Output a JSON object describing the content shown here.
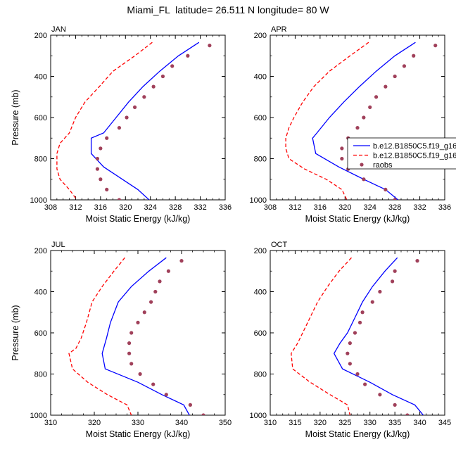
{
  "title": "Miami_FL  latitude= 26.511 N longitude= 80 W",
  "legend_entries": [
    "b.e12.B1850C5.f19_g16",
    "b.e12.B1850C5.f19_g16",
    "raobs"
  ],
  "colors": {
    "series1": "#0000ff",
    "series2": "#ff0000",
    "raobs": "#a0405a"
  },
  "chart_data": [
    {
      "type": "line",
      "panel_label": "JAN",
      "xlabel": "Moist Static Energy (kJ/kg)",
      "ylabel": "Pressure (mb)",
      "xlim": [
        308,
        336
      ],
      "ylim": [
        1000,
        200
      ],
      "y_inverted": true,
      "xticks": [
        308,
        312,
        316,
        320,
        324,
        328,
        332,
        336
      ],
      "yticks": [
        200,
        400,
        600,
        800,
        1000
      ],
      "legend": false,
      "series": [
        {
          "style": "solid",
          "color": "#0000ff",
          "points": [
            [
              331.8,
              235
            ],
            [
              328.5,
              300
            ],
            [
              325.5,
              375
            ],
            [
              322.8,
              450
            ],
            [
              320.5,
              525
            ],
            [
              318.5,
              600
            ],
            [
              316.5,
              675
            ],
            [
              314.5,
              700
            ],
            [
              314.5,
              775
            ],
            [
              316.5,
              840
            ],
            [
              319.5,
              900
            ],
            [
              322.0,
              950
            ],
            [
              323.8,
              1000
            ]
          ]
        },
        {
          "style": "dashed",
          "color": "#ff0000",
          "points": [
            [
              324.3,
              235
            ],
            [
              321.5,
              300
            ],
            [
              318.0,
              375
            ],
            [
              315.8,
              450
            ],
            [
              313.5,
              525
            ],
            [
              312.0,
              600
            ],
            [
              311.0,
              675
            ],
            [
              309.5,
              725
            ],
            [
              309.0,
              775
            ],
            [
              309.0,
              850
            ],
            [
              309.5,
              900
            ],
            [
              311.0,
              950
            ],
            [
              312.2,
              1000
            ]
          ]
        },
        {
          "name": "raobs",
          "style": "marker",
          "color": "#a0405a",
          "points": [
            [
              333.5,
              250
            ],
            [
              330.0,
              300
            ],
            [
              327.5,
              350
            ],
            [
              326.0,
              400
            ],
            [
              324.5,
              450
            ],
            [
              323.0,
              500
            ],
            [
              321.5,
              550
            ],
            [
              320.2,
              600
            ],
            [
              319.0,
              650
            ],
            [
              317.0,
              700
            ],
            [
              316.0,
              750
            ],
            [
              315.5,
              800
            ],
            [
              315.5,
              850
            ],
            [
              316.0,
              900
            ],
            [
              317.0,
              950
            ],
            [
              319.0,
              1000
            ]
          ]
        }
      ]
    },
    {
      "type": "line",
      "panel_label": "APR",
      "xlabel": "Moist Static Energy (kJ/kg)",
      "ylabel": "",
      "xlim": [
        308,
        336
      ],
      "ylim": [
        1000,
        200
      ],
      "y_inverted": true,
      "xticks": [
        308,
        312,
        316,
        320,
        324,
        328,
        332,
        336
      ],
      "yticks": [
        200,
        400,
        600,
        800,
        1000
      ],
      "legend": true,
      "legend_placement": "right",
      "series": [
        {
          "name": "b.e12.B1850C5.f19_g16",
          "style": "solid",
          "color": "#0000ff",
          "points": [
            [
              331.3,
              235
            ],
            [
              328.0,
              300
            ],
            [
              325.0,
              375
            ],
            [
              322.3,
              450
            ],
            [
              319.8,
              525
            ],
            [
              317.5,
              600
            ],
            [
              315.5,
              675
            ],
            [
              314.8,
              700
            ],
            [
              315.3,
              775
            ],
            [
              319.0,
              840
            ],
            [
              323.0,
              900
            ],
            [
              326.5,
              950
            ],
            [
              328.5,
              1000
            ]
          ]
        },
        {
          "name": "b.e12.B1850C5.f19_g16",
          "style": "dashed",
          "color": "#ff0000",
          "points": [
            [
              323.8,
              235
            ],
            [
              320.8,
              300
            ],
            [
              317.5,
              375
            ],
            [
              315.0,
              450
            ],
            [
              313.2,
              525
            ],
            [
              311.8,
              600
            ],
            [
              311.0,
              650
            ],
            [
              310.5,
              700
            ],
            [
              310.5,
              750
            ],
            [
              311.0,
              800
            ],
            [
              313.5,
              850
            ],
            [
              317.0,
              900
            ],
            [
              319.5,
              950
            ],
            [
              320.3,
              1000
            ]
          ]
        },
        {
          "name": "raobs",
          "style": "marker",
          "color": "#a0405a",
          "points": [
            [
              334.5,
              250
            ],
            [
              331.0,
              300
            ],
            [
              329.5,
              350
            ],
            [
              328.0,
              400
            ],
            [
              326.5,
              450
            ],
            [
              325.0,
              500
            ],
            [
              324.0,
              550
            ],
            [
              323.0,
              600
            ],
            [
              322.0,
              650
            ],
            [
              320.5,
              700
            ],
            [
              319.5,
              750
            ],
            [
              319.5,
              800
            ],
            [
              320.5,
              850
            ],
            [
              323.0,
              900
            ],
            [
              326.5,
              950
            ],
            [
              328.0,
              1000
            ]
          ]
        }
      ]
    },
    {
      "type": "line",
      "panel_label": "JUL",
      "xlabel": "Moist Static Energy (kJ/kg)",
      "ylabel": "Pressure (mb)",
      "xlim": [
        310,
        350
      ],
      "ylim": [
        1000,
        200
      ],
      "y_inverted": true,
      "xticks": [
        310,
        320,
        330,
        340,
        350
      ],
      "yticks": [
        200,
        400,
        600,
        800,
        1000
      ],
      "legend": false,
      "series": [
        {
          "style": "solid",
          "color": "#0000ff",
          "points": [
            [
              336.5,
              235
            ],
            [
              332.5,
              300
            ],
            [
              328.5,
              375
            ],
            [
              325.5,
              450
            ],
            [
              323.7,
              550
            ],
            [
              322.8,
              625
            ],
            [
              321.8,
              700
            ],
            [
              322.5,
              775
            ],
            [
              330.0,
              840
            ],
            [
              335.5,
              900
            ],
            [
              340.5,
              950
            ],
            [
              341.8,
              1000
            ]
          ]
        },
        {
          "style": "dashed",
          "color": "#ff0000",
          "points": [
            [
              327.0,
              235
            ],
            [
              324.5,
              300
            ],
            [
              321.8,
              375
            ],
            [
              319.5,
              450
            ],
            [
              318.2,
              550
            ],
            [
              317.0,
              625
            ],
            [
              315.8,
              675
            ],
            [
              314.2,
              700
            ],
            [
              315.0,
              775
            ],
            [
              318.5,
              840
            ],
            [
              323.0,
              900
            ],
            [
              327.5,
              950
            ],
            [
              328.5,
              1000
            ]
          ]
        },
        {
          "name": "raobs",
          "style": "marker",
          "color": "#a0405a",
          "points": [
            [
              340.0,
              250
            ],
            [
              337.0,
              300
            ],
            [
              335.0,
              350
            ],
            [
              334.0,
              400
            ],
            [
              333.0,
              450
            ],
            [
              331.5,
              500
            ],
            [
              330.0,
              550
            ],
            [
              328.5,
              600
            ],
            [
              328.0,
              650
            ],
            [
              328.0,
              700
            ],
            [
              328.5,
              750
            ],
            [
              330.5,
              800
            ],
            [
              333.5,
              850
            ],
            [
              336.5,
              900
            ],
            [
              342.0,
              950
            ],
            [
              345.0,
              1000
            ]
          ]
        }
      ]
    },
    {
      "type": "line",
      "panel_label": "OCT",
      "xlabel": "Moist Static Energy (kJ/kg)",
      "ylabel": "",
      "xlim": [
        310,
        345
      ],
      "ylim": [
        1000,
        200
      ],
      "y_inverted": true,
      "xticks": [
        310,
        315,
        320,
        325,
        330,
        335,
        340,
        345
      ],
      "yticks": [
        200,
        400,
        600,
        800,
        1000
      ],
      "legend": false,
      "series": [
        {
          "style": "solid",
          "color": "#0000ff",
          "points": [
            [
              335.5,
              235
            ],
            [
              333.0,
              300
            ],
            [
              330.5,
              375
            ],
            [
              328.5,
              450
            ],
            [
              327.0,
              525
            ],
            [
              325.5,
              600
            ],
            [
              324.0,
              650
            ],
            [
              322.8,
              700
            ],
            [
              324.5,
              775
            ],
            [
              330.0,
              840
            ],
            [
              334.5,
              900
            ],
            [
              339.0,
              950
            ],
            [
              340.7,
              1000
            ]
          ]
        },
        {
          "style": "dashed",
          "color": "#ff0000",
          "points": [
            [
              326.3,
              235
            ],
            [
              323.8,
              300
            ],
            [
              321.5,
              375
            ],
            [
              319.5,
              450
            ],
            [
              318.0,
              525
            ],
            [
              316.5,
              600
            ],
            [
              315.5,
              650
            ],
            [
              314.2,
              700
            ],
            [
              314.5,
              775
            ],
            [
              318.0,
              840
            ],
            [
              322.0,
              900
            ],
            [
              325.5,
              950
            ],
            [
              326.0,
              1000
            ]
          ]
        },
        {
          "name": "raobs",
          "style": "marker",
          "color": "#a0405a",
          "points": [
            [
              339.5,
              250
            ],
            [
              335.0,
              300
            ],
            [
              334.5,
              350
            ],
            [
              332.0,
              400
            ],
            [
              330.5,
              450
            ],
            [
              328.5,
              500
            ],
            [
              328.0,
              550
            ],
            [
              327.0,
              600
            ],
            [
              326.0,
              650
            ],
            [
              325.5,
              700
            ],
            [
              326.0,
              750
            ],
            [
              327.5,
              800
            ],
            [
              329.0,
              850
            ],
            [
              332.0,
              900
            ],
            [
              335.0,
              950
            ],
            [
              337.5,
              1000
            ]
          ]
        }
      ]
    }
  ]
}
